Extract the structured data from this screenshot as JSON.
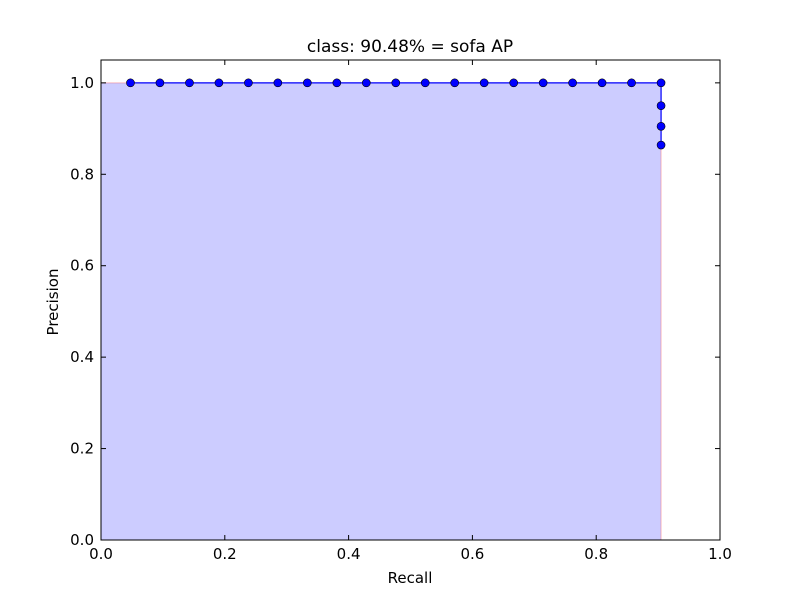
{
  "chart_data": {
    "type": "line",
    "title": "class: 90.48% = sofa AP",
    "xlabel": "Recall",
    "ylabel": "Precision",
    "xlim": [
      0.0,
      1.0
    ],
    "ylim": [
      0.0,
      1.05
    ],
    "xticks": [
      "0.0",
      "0.2",
      "0.4",
      "0.6",
      "0.8",
      "1.0"
    ],
    "xtick_values": [
      0.0,
      0.2,
      0.4,
      0.6,
      0.8,
      1.0
    ],
    "yticks": [
      "0.0",
      "0.2",
      "0.4",
      "0.6",
      "0.8",
      "1.0"
    ],
    "ytick_values": [
      0.0,
      0.2,
      0.4,
      0.6,
      0.8,
      1.0
    ],
    "grid": false,
    "series": [
      {
        "color": "#0000ff",
        "marker": "circle",
        "x": [
          0.0476,
          0.0952,
          0.1429,
          0.1905,
          0.2381,
          0.2857,
          0.3333,
          0.381,
          0.4286,
          0.4762,
          0.5238,
          0.5714,
          0.619,
          0.6667,
          0.7143,
          0.7619,
          0.8095,
          0.8571,
          0.9048,
          0.9048,
          0.9048,
          0.9048
        ],
        "y": [
          1.0,
          1.0,
          1.0,
          1.0,
          1.0,
          1.0,
          1.0,
          1.0,
          1.0,
          1.0,
          1.0,
          1.0,
          1.0,
          1.0,
          1.0,
          1.0,
          1.0,
          1.0,
          1.0,
          0.95,
          0.905,
          0.864
        ]
      }
    ],
    "area": {
      "color": "#0000ff",
      "alpha": 0.2,
      "edge_color": "#ff0000",
      "x": [
        0.0,
        0.0476,
        0.0952,
        0.1429,
        0.1905,
        0.2381,
        0.2857,
        0.3333,
        0.381,
        0.4286,
        0.4762,
        0.5238,
        0.5714,
        0.619,
        0.6667,
        0.7143,
        0.7619,
        0.8095,
        0.8571,
        0.9048,
        0.9048
      ],
      "y": [
        1.0,
        1.0,
        1.0,
        1.0,
        1.0,
        1.0,
        1.0,
        1.0,
        1.0,
        1.0,
        1.0,
        1.0,
        1.0,
        1.0,
        1.0,
        1.0,
        1.0,
        1.0,
        1.0,
        1.0,
        0.0
      ]
    }
  }
}
